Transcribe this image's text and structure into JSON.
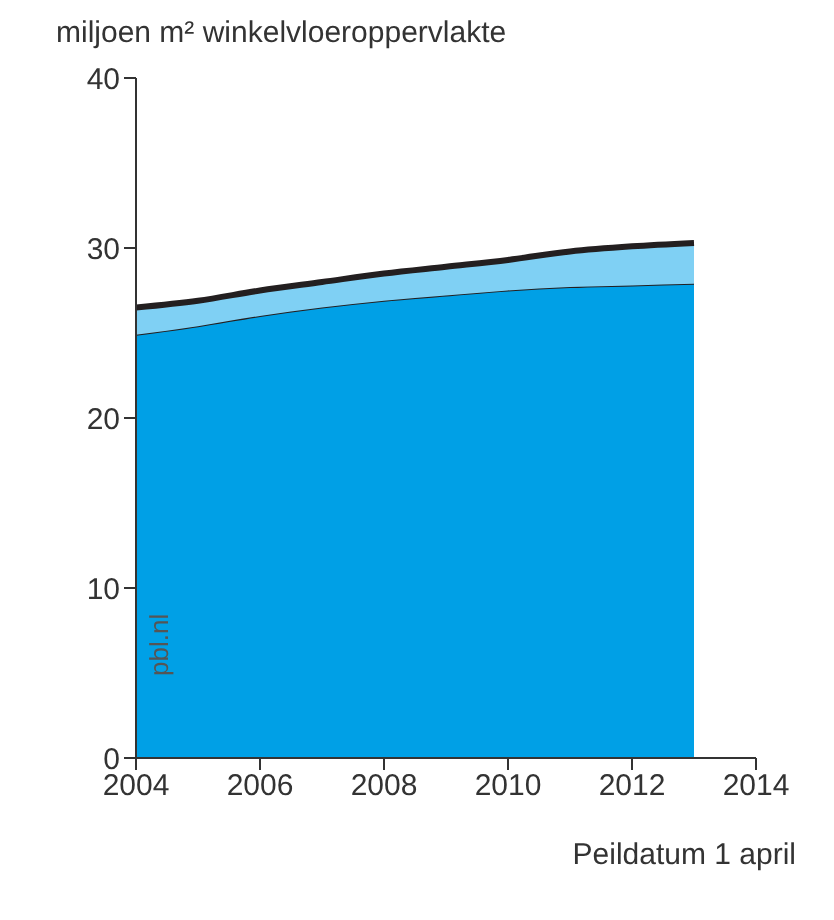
{
  "chart_data": {
    "type": "area",
    "stacked": true,
    "title": "miljoen m² winkelvloeroppervlakte",
    "xlabel": "Peildatum 1 april",
    "x": [
      2004,
      2005,
      2006,
      2007,
      2008,
      2009,
      2010,
      2011,
      2012,
      2013
    ],
    "series": [
      {
        "color": "#00a0e6",
        "values": [
          24.9,
          25.4,
          26.0,
          26.5,
          26.9,
          27.2,
          27.5,
          27.7,
          27.8,
          27.9
        ]
      },
      {
        "color": "#7fd0f4",
        "values": [
          1.6,
          1.5,
          1.5,
          1.5,
          1.6,
          1.7,
          1.8,
          2.1,
          2.3,
          2.4
        ]
      }
    ],
    "xlim": [
      2004,
      2014
    ],
    "xticks": [
      2004,
      2006,
      2008,
      2010,
      2012,
      2014
    ],
    "ylim": [
      0,
      40
    ],
    "yticks": [
      0,
      10,
      20,
      30,
      40
    ],
    "annotations": [
      "pbl.nl"
    ]
  }
}
